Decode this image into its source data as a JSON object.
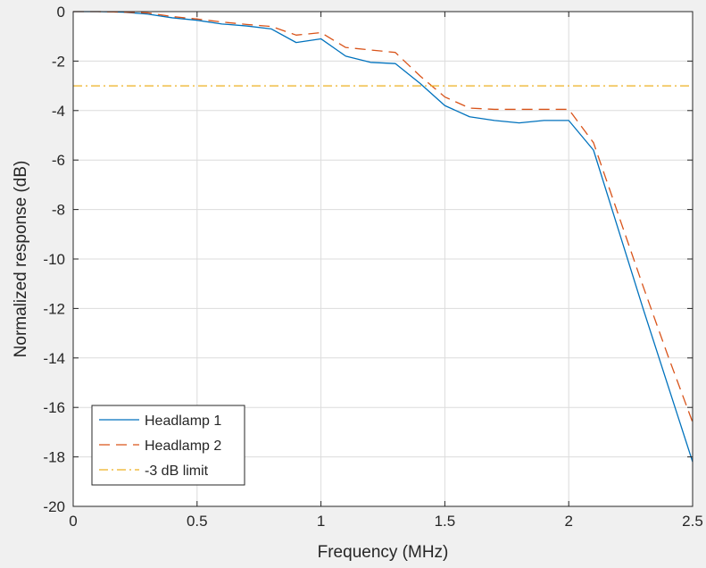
{
  "chart_data": {
    "type": "line",
    "title": "",
    "xlabel": "Frequency (MHz)",
    "ylabel": "Normalized response (dB)",
    "xlim": [
      0,
      2.5
    ],
    "ylim": [
      -20,
      0
    ],
    "xticks": [
      0,
      0.5,
      1,
      1.5,
      2,
      2.5
    ],
    "xtick_labels": [
      "0",
      "0.5",
      "1",
      "1.5",
      "2",
      "2.5"
    ],
    "yticks": [
      -20,
      -18,
      -16,
      -14,
      -12,
      -10,
      -8,
      -6,
      -4,
      -2,
      0
    ],
    "ytick_labels": [
      "-20",
      "-18",
      "-16",
      "-14",
      "-12",
      "-10",
      "-8",
      "-6",
      "-4",
      "-2",
      "0"
    ],
    "grid": true,
    "legend_position": "bottom-left",
    "series": [
      {
        "name": "Headlamp 1",
        "color": "#0072BD",
        "style": "solid",
        "x": [
          0,
          0.1,
          0.2,
          0.3,
          0.4,
          0.5,
          0.6,
          0.7,
          0.8,
          0.9,
          1.0,
          1.1,
          1.2,
          1.3,
          1.4,
          1.5,
          1.6,
          1.7,
          1.8,
          1.9,
          2.0,
          2.1,
          2.2,
          2.3,
          2.4,
          2.5
        ],
        "y": [
          0,
          0,
          -0.02,
          -0.1,
          -0.25,
          -0.35,
          -0.5,
          -0.58,
          -0.7,
          -1.25,
          -1.1,
          -1.8,
          -2.05,
          -2.1,
          -2.9,
          -3.8,
          -4.25,
          -4.4,
          -4.5,
          -4.4,
          -4.4,
          -5.6,
          -8.8,
          -12.0,
          -15.1,
          -18.2
        ]
      },
      {
        "name": "Headlamp 2",
        "color": "#D95319",
        "style": "dashed",
        "x": [
          0,
          0.1,
          0.2,
          0.3,
          0.4,
          0.5,
          0.6,
          0.7,
          0.8,
          0.9,
          1.0,
          1.1,
          1.2,
          1.3,
          1.4,
          1.5,
          1.6,
          1.7,
          1.8,
          1.9,
          2.0,
          2.1,
          2.2,
          2.3,
          2.4,
          2.5
        ],
        "y": [
          0,
          0,
          -0.02,
          -0.05,
          -0.2,
          -0.3,
          -0.42,
          -0.52,
          -0.6,
          -0.95,
          -0.85,
          -1.45,
          -1.55,
          -1.65,
          -2.6,
          -3.45,
          -3.9,
          -3.95,
          -3.95,
          -3.95,
          -3.95,
          -5.3,
          -8.2,
          -11.1,
          -13.9,
          -16.6
        ]
      },
      {
        "name": "-3 dB limit",
        "color": "#EDB120",
        "style": "dashdot",
        "x": [
          0,
          2.5
        ],
        "y": [
          -3,
          -3
        ]
      }
    ]
  }
}
